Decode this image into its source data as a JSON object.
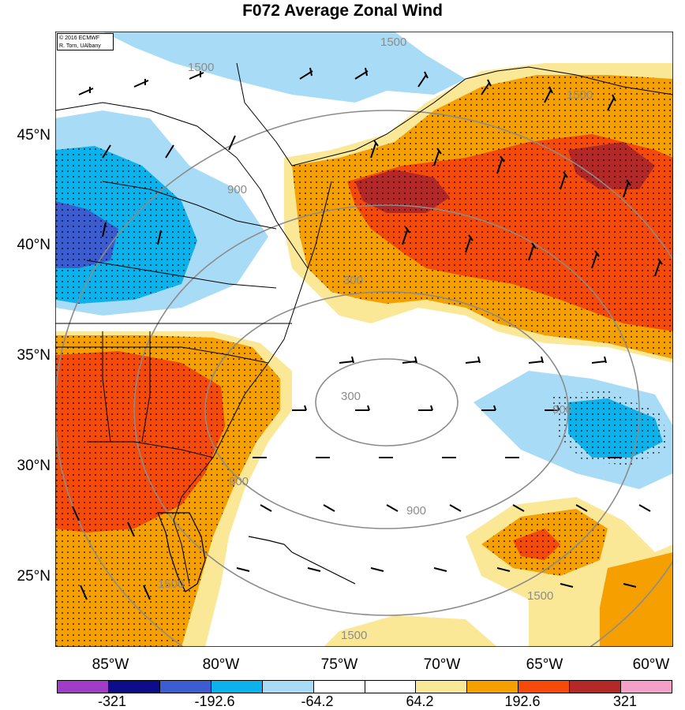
{
  "title": "F072 Average Zonal Wind",
  "credit": {
    "line1": "© 2016 ECMWF",
    "line2": "R. Torn, UAlbany"
  },
  "lat_labels": [
    "45°N",
    "40°N",
    "35°N",
    "30°N",
    "25°N"
  ],
  "lon_labels": [
    "85°W",
    "80°W",
    "75°W",
    "70°W",
    "65°W",
    "60°W"
  ],
  "contour_labels": [
    "1500",
    "1500",
    "1500",
    "900",
    "900",
    "900",
    "300",
    "300",
    "900",
    "1500",
    "1500",
    "1500"
  ],
  "colorbar": {
    "colors": [
      "#a03cc8",
      "#0d0d8c",
      "#3c5cd2",
      "#0cb2ec",
      "#a8dcf6",
      "#ffffff",
      "#ffffff",
      "#fae896",
      "#f5a000",
      "#f54a0a",
      "#b42828",
      "#f5a0c8"
    ],
    "labels": [
      "-321",
      "-192.6",
      "-64.2",
      "64.2",
      "192.6",
      "321"
    ]
  },
  "colors": {
    "ocean": "#ffffff",
    "light_yellow": "#fae896",
    "orange": "#f5a000",
    "red_orange": "#f54a0a",
    "dark_red": "#b42828",
    "light_blue": "#a8dcf6",
    "blue": "#0cb2ec",
    "dark_blue": "#3c5cd2"
  }
}
